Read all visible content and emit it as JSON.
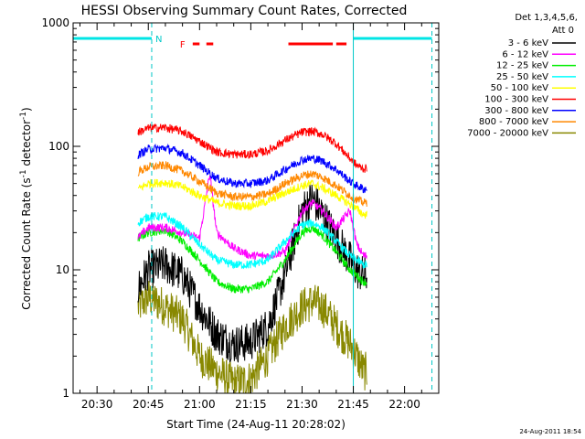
{
  "chart_data": {
    "type": "line",
    "title": "HESSI Observing Summary Count Rates, Corrected",
    "xlabel": "Start Time (24-Aug-11 20:28:02)",
    "ylabel_main": "Corrected Count Rate (s",
    "ylabel_sup1": "-1",
    "ylabel_mid": " detector",
    "ylabel_sup2": "-1",
    "ylabel_end": ")",
    "y_scale": "log",
    "ylim": [
      1,
      1000
    ],
    "xlim": [
      "20:23",
      "22:10"
    ],
    "x_ticks": [
      "20:30",
      "20:45",
      "21:00",
      "21:15",
      "21:30",
      "21:45",
      "22:00"
    ],
    "y_ticks": [
      "1",
      "10",
      "100",
      "1000"
    ],
    "grid": false,
    "legend_position": "right",
    "legend_header_1": "Det 1,3,4,5,6,",
    "legend_header_2": "Att 0",
    "timestamp": "24-Aug-2011 18:54",
    "flare_marker_label": "F",
    "night_marker_label": "N",
    "flare_intervals": [
      [
        "20:58",
        "21:00"
      ],
      [
        "21:02",
        "21:04"
      ],
      [
        "21:26",
        "21:39"
      ],
      [
        "21:40",
        "21:43"
      ]
    ],
    "night_intervals": [
      [
        "20:23",
        "20:46"
      ],
      [
        "21:45",
        "22:08"
      ]
    ],
    "night_edge_markers": [
      "20:46",
      "22:08"
    ],
    "saa_boundary": "21:45",
    "data_interval": [
      "20:42",
      "21:49"
    ],
    "series": [
      {
        "name": "3 - 6 keV",
        "color": "#000000",
        "x": [
          "20:42",
          "20:45",
          "20:50",
          "20:55",
          "21:00",
          "21:05",
          "21:10",
          "21:15",
          "21:20",
          "21:25",
          "21:30",
          "21:33",
          "21:36",
          "21:40",
          "21:44",
          "21:46",
          "21:48"
        ],
        "values": [
          7,
          10,
          11,
          9,
          5,
          3,
          2.5,
          2.6,
          3.5,
          9,
          30,
          38,
          28,
          18,
          12,
          10,
          9
        ]
      },
      {
        "name": "6 - 12 keV",
        "color": "#ff00ff",
        "x": [
          "20:42",
          "20:45",
          "20:50",
          "20:55",
          "21:00",
          "21:03",
          "21:05",
          "21:10",
          "21:15",
          "21:20",
          "21:25",
          "21:30",
          "21:33",
          "21:36",
          "21:40",
          "21:44",
          "21:46",
          "21:48"
        ],
        "values": [
          18,
          22,
          22,
          20,
          18,
          60,
          20,
          15,
          13,
          13,
          14,
          30,
          35,
          30,
          22,
          30,
          16,
          13
        ]
      },
      {
        "name": "12 - 25 keV",
        "color": "#00ee00",
        "x": [
          "20:42",
          "20:45",
          "20:50",
          "20:55",
          "21:00",
          "21:05",
          "21:10",
          "21:15",
          "21:20",
          "21:25",
          "21:30",
          "21:33",
          "21:36",
          "21:40",
          "21:44",
          "21:46",
          "21:48"
        ],
        "values": [
          18,
          20,
          21,
          17,
          12,
          8,
          7,
          7,
          8,
          12,
          20,
          22,
          19,
          14,
          10,
          9,
          8
        ]
      },
      {
        "name": "25 - 50 keV",
        "color": "#00ffff",
        "x": [
          "20:42",
          "20:45",
          "20:50",
          "20:55",
          "21:00",
          "21:05",
          "21:10",
          "21:15",
          "21:20",
          "21:25",
          "21:30",
          "21:33",
          "21:36",
          "21:40",
          "21:44",
          "21:46",
          "21:48"
        ],
        "values": [
          24,
          27,
          27,
          22,
          16,
          12,
          11,
          11,
          12,
          17,
          23,
          24,
          22,
          17,
          13,
          12,
          11
        ]
      },
      {
        "name": "50 - 100 keV",
        "color": "#ffff00",
        "x": [
          "20:42",
          "20:45",
          "20:50",
          "20:55",
          "21:00",
          "21:05",
          "21:10",
          "21:15",
          "21:20",
          "21:25",
          "21:30",
          "21:33",
          "21:36",
          "21:40",
          "21:44",
          "21:46",
          "21:48"
        ],
        "values": [
          45,
          50,
          51,
          47,
          40,
          35,
          33,
          33,
          36,
          42,
          48,
          50,
          46,
          40,
          34,
          31,
          28
        ]
      },
      {
        "name": "100 - 300 keV",
        "color": "#ff0000",
        "x": [
          "20:42",
          "20:45",
          "20:50",
          "20:55",
          "21:00",
          "21:05",
          "21:10",
          "21:15",
          "21:20",
          "21:25",
          "21:30",
          "21:33",
          "21:36",
          "21:40",
          "21:44",
          "21:46",
          "21:48"
        ],
        "values": [
          130,
          140,
          142,
          132,
          110,
          90,
          86,
          86,
          92,
          112,
          130,
          132,
          125,
          105,
          80,
          70,
          66
        ]
      },
      {
        "name": "300 - 800 keV",
        "color": "#0000ff",
        "x": [
          "20:42",
          "20:45",
          "20:50",
          "20:55",
          "21:00",
          "21:05",
          "21:10",
          "21:15",
          "21:20",
          "21:25",
          "21:30",
          "21:33",
          "21:36",
          "21:40",
          "21:44",
          "21:46",
          "21:48"
        ],
        "values": [
          85,
          95,
          97,
          88,
          70,
          55,
          50,
          50,
          53,
          65,
          78,
          80,
          76,
          65,
          52,
          48,
          45
        ]
      },
      {
        "name": "800 - 7000 keV",
        "color": "#ff8800",
        "x": [
          "20:42",
          "20:45",
          "20:50",
          "20:55",
          "21:00",
          "21:05",
          "21:10",
          "21:15",
          "21:20",
          "21:25",
          "21:30",
          "21:33",
          "21:36",
          "21:40",
          "21:44",
          "21:46",
          "21:48"
        ],
        "values": [
          62,
          68,
          70,
          63,
          52,
          42,
          39,
          39,
          41,
          50,
          58,
          60,
          56,
          48,
          40,
          37,
          35
        ]
      },
      {
        "name": "7000 - 20000 keV",
        "color": "#888800",
        "x": [
          "20:42",
          "20:45",
          "20:50",
          "20:55",
          "21:00",
          "21:05",
          "21:10",
          "21:15",
          "21:20",
          "21:25",
          "21:30",
          "21:33",
          "21:36",
          "21:40",
          "21:44",
          "21:46",
          "21:48"
        ],
        "values": [
          5,
          6,
          5,
          4,
          2,
          1.5,
          1.2,
          1.3,
          2,
          3.5,
          5,
          5.5,
          5,
          3.5,
          2.5,
          2,
          1.5
        ]
      }
    ]
  }
}
